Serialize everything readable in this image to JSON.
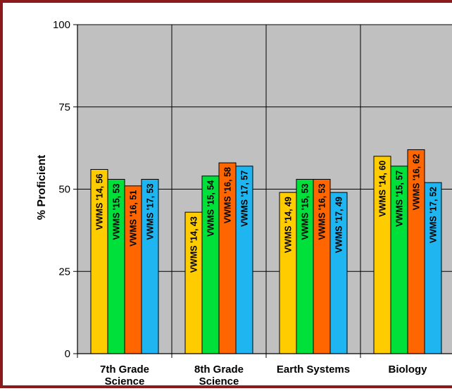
{
  "chart_data": {
    "type": "bar",
    "ylabel": "% Proficient",
    "ylim": [
      0,
      100
    ],
    "yticks": [
      "0",
      "25",
      "50",
      "75",
      "100"
    ],
    "grid": true,
    "categories": [
      "7th Grade\nScience",
      "8th Grade\nScience",
      "Earth Systems",
      "Biology"
    ],
    "series": [
      {
        "name": "VWMS '14",
        "color": "#FFCC00",
        "values": [
          56,
          43,
          49,
          60
        ]
      },
      {
        "name": "VWMS '15",
        "color": "#00E03A",
        "values": [
          53,
          54,
          53,
          57
        ]
      },
      {
        "name": "VWMS '16",
        "color": "#FF6600",
        "values": [
          51,
          58,
          53,
          62
        ]
      },
      {
        "name": "VWMS '17",
        "color": "#1FB5F0",
        "values": [
          53,
          57,
          49,
          52
        ]
      }
    ],
    "data_labels": [
      [
        "VWMS '14, 56",
        "VWMS '15, 53",
        "VWMS '16, 51",
        "VWMS '17, 53"
      ],
      [
        "VWMS '14, 43",
        "VWMS '15, 54",
        "VWMS '16, 58",
        "VWMS '17, 57"
      ],
      [
        "VWMS '14, 49",
        "VWMS '15, 53",
        "VWMS '16, 53",
        "VWMS '17, 49"
      ],
      [
        "VWMS '14, 60",
        "VWMS '15, 57",
        "VWMS '16, 62",
        "VWMS '17, 52"
      ]
    ],
    "plot_background": "#C0C0C0"
  }
}
